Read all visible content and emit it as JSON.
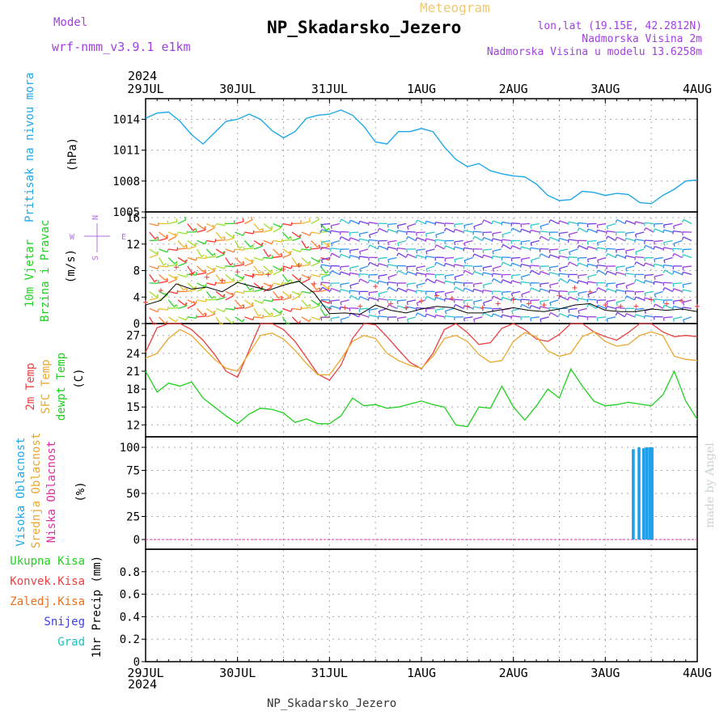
{
  "header": {
    "model_label": "Model",
    "model_name": "wrf-nmm_v3.9.1 e1km",
    "subtitle": "Meteogram",
    "station_title": "NP_Skadarsko_Jezero",
    "lonlat": "lon,lat (19.15E, 42.2812N)",
    "elevation": "Nadmorska Visina 2m",
    "model_elevation": "Nadmorska Visina u modelu 13.6258m",
    "footer": "NP_Skadarsko_Jezero",
    "credit": "made by Angel"
  },
  "colors": {
    "pressure": "#20a8e8",
    "temp2m": "#e84040",
    "sfc": "#e8a830",
    "dewpt": "#20d020",
    "high_cloud": "#20a0e8",
    "precip_total": "#20d020",
    "precip_conv": "#e84040",
    "precip_frozen": "#e87020",
    "precip_snow": "#4040e0",
    "precip_grad": "#20c0c0"
  },
  "chart_data": [
    {
      "type": "line",
      "panel": "pressure",
      "ylabel_rotated": "Pritisak na nivou mora",
      "unit": "(hPa)",
      "x_year": "2024",
      "x_ticks": [
        "29JUL",
        "30JUL",
        "31JUL",
        "1AUG",
        "2AUG",
        "3AUG",
        "4AUG"
      ],
      "ylim": [
        1005,
        1016
      ],
      "yticks": [
        "1005",
        "1008",
        "1011",
        "1014"
      ],
      "x": [
        0,
        3,
        6,
        9,
        12,
        15,
        18,
        21,
        24,
        27,
        30,
        33,
        36,
        39,
        42,
        45,
        48,
        51,
        54,
        57,
        60,
        63,
        66,
        69,
        72,
        75,
        78,
        81,
        84,
        87,
        90,
        93,
        96,
        99,
        102,
        105,
        108,
        111,
        114,
        117,
        120,
        123,
        126,
        129,
        132,
        135,
        138,
        141,
        144
      ],
      "series": [
        {
          "name": "Pritisak na nivou mora",
          "values": [
            1014.1,
            1014.6,
            1014.7,
            1013.8,
            1012.5,
            1011.6,
            1012.7,
            1013.8,
            1014.0,
            1014.5,
            1014.0,
            1012.9,
            1012.2,
            1012.8,
            1014.1,
            1014.4,
            1014.5,
            1014.9,
            1014.4,
            1013.3,
            1011.8,
            1011.6,
            1012.8,
            1012.8,
            1013.1,
            1012.8,
            1011.3,
            1010.1,
            1009.4,
            1009.7,
            1009.0,
            1008.7,
            1008.5,
            1008.4,
            1007.7,
            1006.6,
            1006.1,
            1006.2,
            1007.0,
            1006.9,
            1006.6,
            1006.8,
            1006.7,
            1005.9,
            1005.8,
            1006.6,
            1007.2,
            1008.0,
            1008.1
          ]
        }
      ]
    },
    {
      "type": "scatter",
      "panel": "wind",
      "ylabel_rotated": [
        "10m Vjetar",
        "Brzina i Pravac"
      ],
      "unit": "(m/s)",
      "ylim": [
        0,
        16
      ],
      "yticks": [
        "0",
        "4",
        "8",
        "12",
        "16"
      ],
      "compass": [
        "N",
        "W",
        "E",
        "S"
      ],
      "x": [
        0,
        4,
        8,
        12,
        16,
        20,
        24,
        28,
        32,
        36,
        40,
        44,
        48,
        52,
        56,
        60,
        64,
        68,
        72,
        76,
        80,
        84,
        88,
        92,
        96,
        100,
        104,
        108,
        112,
        116,
        120,
        124,
        128,
        132,
        136,
        140,
        144
      ],
      "series": [
        {
          "name": "10m Vjetar Brzina",
          "values": [
            2.8,
            3.5,
            6.0,
            5.2,
            5.5,
            4.8,
            6.2,
            5.6,
            5.0,
            5.8,
            6.4,
            4.6,
            1.5,
            1.6,
            1.4,
            2.8,
            2.0,
            1.6,
            2.2,
            2.6,
            2.4,
            1.6,
            1.6,
            2.0,
            2.4,
            2.0,
            1.8,
            2.2,
            2.8,
            3.0,
            2.0,
            1.8,
            1.8,
            2.2,
            2.0,
            2.2,
            1.8
          ]
        },
        {
          "name": "Udar vjetra",
          "values": [
            3.2,
            5.0,
            8.5,
            7.5,
            7.0,
            6.5,
            7.8,
            7.2,
            7.4,
            8.2,
            8.8,
            6.0,
            2.2,
            2.4,
            2.6,
            5.6,
            3.0,
            2.4,
            3.4,
            4.2,
            3.8,
            2.6,
            2.4,
            3.0,
            3.6,
            3.0,
            2.8,
            4.2,
            5.4,
            4.8,
            2.8,
            2.6,
            2.6,
            3.6,
            3.0,
            3.4,
            2.6
          ]
        }
      ]
    },
    {
      "type": "line",
      "panel": "temperature",
      "ylabel_rotated": [
        "2m Temp",
        "SFC Temp",
        "dewpt Temp"
      ],
      "unit": "(C)",
      "ylim": [
        10,
        29
      ],
      "yticks": [
        "12",
        "15",
        "18",
        "21",
        "24",
        "27"
      ],
      "x": [
        0,
        3,
        6,
        9,
        12,
        15,
        18,
        21,
        24,
        27,
        30,
        33,
        36,
        39,
        42,
        45,
        48,
        51,
        54,
        57,
        60,
        63,
        66,
        69,
        72,
        75,
        78,
        81,
        84,
        87,
        90,
        93,
        96,
        99,
        102,
        105,
        108,
        111,
        114,
        117,
        120,
        123,
        126,
        129,
        132,
        135,
        138,
        141,
        144
      ],
      "series": [
        {
          "name": "2m Temp",
          "values": [
            24.2,
            28.3,
            29.0,
            29.0,
            28.0,
            26.2,
            23.8,
            21.0,
            20.0,
            24.5,
            29.0,
            29.0,
            28.0,
            26.0,
            23.3,
            20.5,
            19.5,
            22.0,
            26.5,
            29.0,
            28.8,
            26.8,
            24.6,
            22.5,
            21.4,
            24.0,
            28.0,
            29.0,
            27.5,
            25.5,
            25.8,
            28.2,
            29.0,
            28.0,
            26.4,
            26.0,
            27.2,
            29.0,
            29.0,
            27.6,
            26.8,
            26.2,
            27.5,
            29.0,
            29.0,
            27.6,
            26.8,
            27.0,
            26.8
          ]
        },
        {
          "name": "SFC Temp",
          "values": [
            23.2,
            24.0,
            26.5,
            28.0,
            27.0,
            25.0,
            23.0,
            21.5,
            21.0,
            24.0,
            27.0,
            27.4,
            26.4,
            24.5,
            22.3,
            20.4,
            20.4,
            23.0,
            26.0,
            27.0,
            26.5,
            24.0,
            22.8,
            22.0,
            21.5,
            23.5,
            26.5,
            27.0,
            26.0,
            23.8,
            22.5,
            22.8,
            26.0,
            27.5,
            26.8,
            24.4,
            23.5,
            24.0,
            26.8,
            27.6,
            26.0,
            25.2,
            25.5,
            27.0,
            27.6,
            27.0,
            23.5,
            23.0,
            22.8
          ]
        },
        {
          "name": "dewpt Temp",
          "values": [
            21.0,
            17.5,
            19.0,
            18.5,
            19.2,
            16.5,
            15.0,
            13.5,
            12.2,
            13.8,
            14.8,
            14.6,
            14.0,
            12.4,
            13.0,
            12.2,
            12.2,
            13.5,
            16.5,
            15.2,
            15.4,
            14.8,
            15.0,
            15.5,
            16.0,
            15.4,
            15.0,
            12.0,
            11.7,
            15.0,
            14.8,
            18.5,
            15.0,
            12.8,
            15.2,
            18.0,
            16.5,
            21.4,
            18.5,
            16.0,
            15.2,
            15.4,
            15.8,
            15.5,
            15.2,
            17.0,
            21.0,
            16.0,
            12.9
          ]
        }
      ]
    },
    {
      "type": "bar",
      "panel": "cloud",
      "ylabel_rotated": [
        "Visoka Oblacnost",
        "Srednja Oblacnost",
        "Niska Oblacnost"
      ],
      "unit": "(%)",
      "ylim": [
        0,
        100
      ],
      "yticks": [
        "0",
        "25",
        "50",
        "75",
        "100"
      ],
      "series": [
        {
          "name": "Visoka Oblacnost",
          "x": [
            127.3,
            128.8,
            130.0,
            130.8,
            131.6,
            132.2
          ],
          "values": [
            98,
            100,
            99,
            100,
            100,
            100
          ]
        },
        {
          "name": "Srednja Oblacnost",
          "x": [],
          "values": []
        },
        {
          "name": "Niska Oblacnost",
          "x": [],
          "values": []
        }
      ]
    },
    {
      "type": "bar",
      "panel": "precipitation",
      "ylabel_rotated": "1hr Precip (mm)",
      "legend": [
        "Ukupna Kisa",
        "Konvek.Kisa",
        "Zaledj.Kisa",
        "Snijeg",
        "Grad"
      ],
      "ylim": [
        0,
        1.0
      ],
      "yticks": [
        "0",
        "0.2",
        "0.4",
        "0.6",
        "0.8"
      ],
      "series": [
        {
          "name": "Ukupna Kisa",
          "values": []
        }
      ]
    }
  ]
}
